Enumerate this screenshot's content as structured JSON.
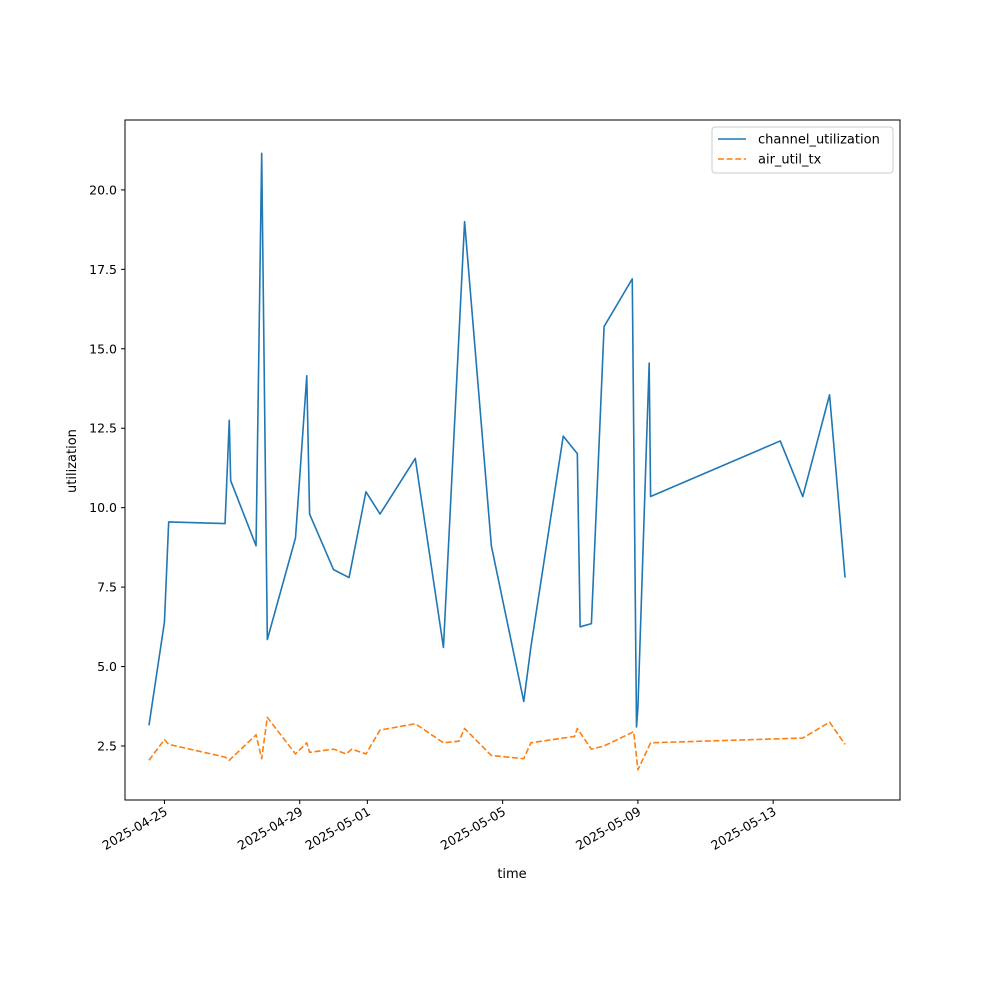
{
  "chart_data": {
    "type": "line",
    "xlabel": "time",
    "ylabel": "utilization",
    "xlim": [
      "2025-04-23T20:00",
      "2025-05-16T18:00"
    ],
    "ylim": [
      0.8,
      22.2
    ],
    "yticks": [
      "2.5",
      "5.0",
      "7.5",
      "10.0",
      "12.5",
      "15.0",
      "17.5",
      "20.0"
    ],
    "xticks": [
      "2025-04-25",
      "2025-04-29",
      "2025-05-01",
      "2025-05-05",
      "2025-05-09",
      "2025-05-13"
    ],
    "grid": false,
    "legend": "top-right",
    "series": [
      {
        "name": "channel_utilization",
        "color": "#1f77b4",
        "style": "solid",
        "points": [
          [
            "2025-04-24T13:00",
            3.15
          ],
          [
            "2025-04-25T00:00",
            6.4
          ],
          [
            "2025-04-25T03:00",
            9.55
          ],
          [
            "2025-04-26T19:00",
            9.5
          ],
          [
            "2025-04-26T22:00",
            12.75
          ],
          [
            "2025-04-26T23:00",
            10.85
          ],
          [
            "2025-04-27T17:00",
            8.8
          ],
          [
            "2025-04-27T21:00",
            21.15
          ],
          [
            "2025-04-28T01:00",
            5.85
          ],
          [
            "2025-04-28T21:00",
            9.05
          ],
          [
            "2025-04-29T05:00",
            14.15
          ],
          [
            "2025-04-29T07:00",
            9.8
          ],
          [
            "2025-04-30T00:00",
            8.05
          ],
          [
            "2025-04-30T11:00",
            7.8
          ],
          [
            "2025-04-30T23:00",
            10.5
          ],
          [
            "2025-05-01T09:00",
            9.8
          ],
          [
            "2025-05-02T10:00",
            11.55
          ],
          [
            "2025-05-03T06:00",
            5.6
          ],
          [
            "2025-05-03T21:00",
            19.0
          ],
          [
            "2025-05-04T16:00",
            8.8
          ],
          [
            "2025-05-05T15:00",
            3.9
          ],
          [
            "2025-05-05T20:00",
            5.6
          ],
          [
            "2025-05-06T19:00",
            12.25
          ],
          [
            "2025-05-07T05:00",
            11.7
          ],
          [
            "2025-05-07T07:00",
            6.25
          ],
          [
            "2025-05-07T15:00",
            6.35
          ],
          [
            "2025-05-08T00:00",
            15.7
          ],
          [
            "2025-05-08T20:00",
            17.2
          ],
          [
            "2025-05-08T23:00",
            3.1
          ],
          [
            "2025-05-09T00:00",
            3.7
          ],
          [
            "2025-05-09T06:00",
            11.9
          ],
          [
            "2025-05-09T08:00",
            14.55
          ],
          [
            "2025-05-09T09:00",
            10.35
          ],
          [
            "2025-05-13T05:00",
            12.1
          ],
          [
            "2025-05-13T21:00",
            10.35
          ],
          [
            "2025-05-14T16:00",
            13.55
          ],
          [
            "2025-05-15T03:00",
            7.8
          ]
        ]
      },
      {
        "name": "air_util_tx",
        "color": "#ff7f0e",
        "style": "dashed",
        "points": [
          [
            "2025-04-24T13:00",
            2.05
          ],
          [
            "2025-04-25T00:00",
            2.7
          ],
          [
            "2025-04-25T03:00",
            2.55
          ],
          [
            "2025-04-26T19:00",
            2.15
          ],
          [
            "2025-04-26T22:00",
            2.05
          ],
          [
            "2025-04-27T17:00",
            2.85
          ],
          [
            "2025-04-27T21:00",
            2.1
          ],
          [
            "2025-04-28T01:00",
            3.4
          ],
          [
            "2025-04-28T21:00",
            2.25
          ],
          [
            "2025-04-29T05:00",
            2.6
          ],
          [
            "2025-04-29T07:00",
            2.3
          ],
          [
            "2025-04-30T00:00",
            2.4
          ],
          [
            "2025-04-30T09:00",
            2.25
          ],
          [
            "2025-04-30T13:00",
            2.4
          ],
          [
            "2025-04-30T23:00",
            2.25
          ],
          [
            "2025-05-01T09:00",
            3.0
          ],
          [
            "2025-05-02T10:00",
            3.2
          ],
          [
            "2025-05-03T06:00",
            2.6
          ],
          [
            "2025-05-03T17:00",
            2.65
          ],
          [
            "2025-05-03T21:00",
            3.05
          ],
          [
            "2025-05-04T16:00",
            2.2
          ],
          [
            "2025-05-05T15:00",
            2.1
          ],
          [
            "2025-05-05T20:00",
            2.6
          ],
          [
            "2025-05-07T03:00",
            2.8
          ],
          [
            "2025-05-07T05:00",
            3.05
          ],
          [
            "2025-05-07T15:00",
            2.4
          ],
          [
            "2025-05-08T00:00",
            2.5
          ],
          [
            "2025-05-08T21:00",
            2.95
          ],
          [
            "2025-05-09T00:00",
            1.75
          ],
          [
            "2025-05-09T09:00",
            2.6
          ],
          [
            "2025-05-13T21:00",
            2.75
          ],
          [
            "2025-05-14T16:00",
            3.25
          ],
          [
            "2025-05-15T03:00",
            2.55
          ]
        ]
      }
    ]
  }
}
